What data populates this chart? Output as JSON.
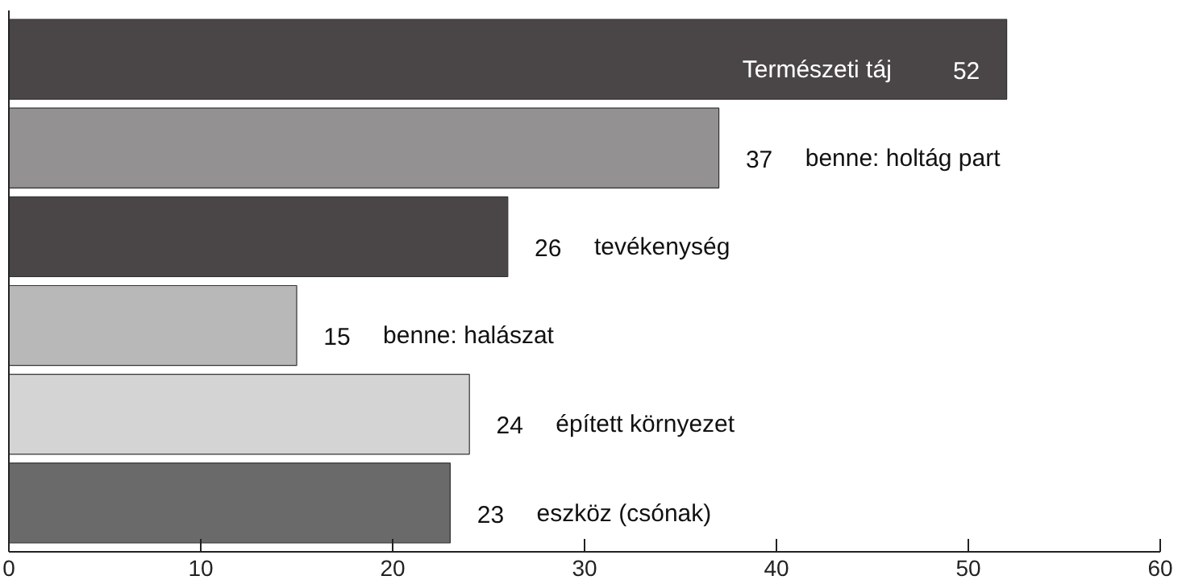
{
  "chart_data": {
    "type": "bar",
    "orientation": "horizontal",
    "categories": [
      "Természeti táj",
      "benne: holtág part",
      "tevékenység",
      "benne: halászat",
      "épített környezet",
      "eszköz (csónak)"
    ],
    "values": [
      52,
      37,
      26,
      15,
      24,
      23
    ],
    "colors": [
      "#4a4647",
      "#939192",
      "#4a4647",
      "#b8b8b8",
      "#d4d4d4",
      "#6a6a6a"
    ],
    "xlim": [
      0,
      60
    ],
    "xticks": [
      0,
      10,
      20,
      30,
      40,
      50,
      60
    ],
    "data_labels": true,
    "grid": false,
    "tick_labels": "x"
  }
}
